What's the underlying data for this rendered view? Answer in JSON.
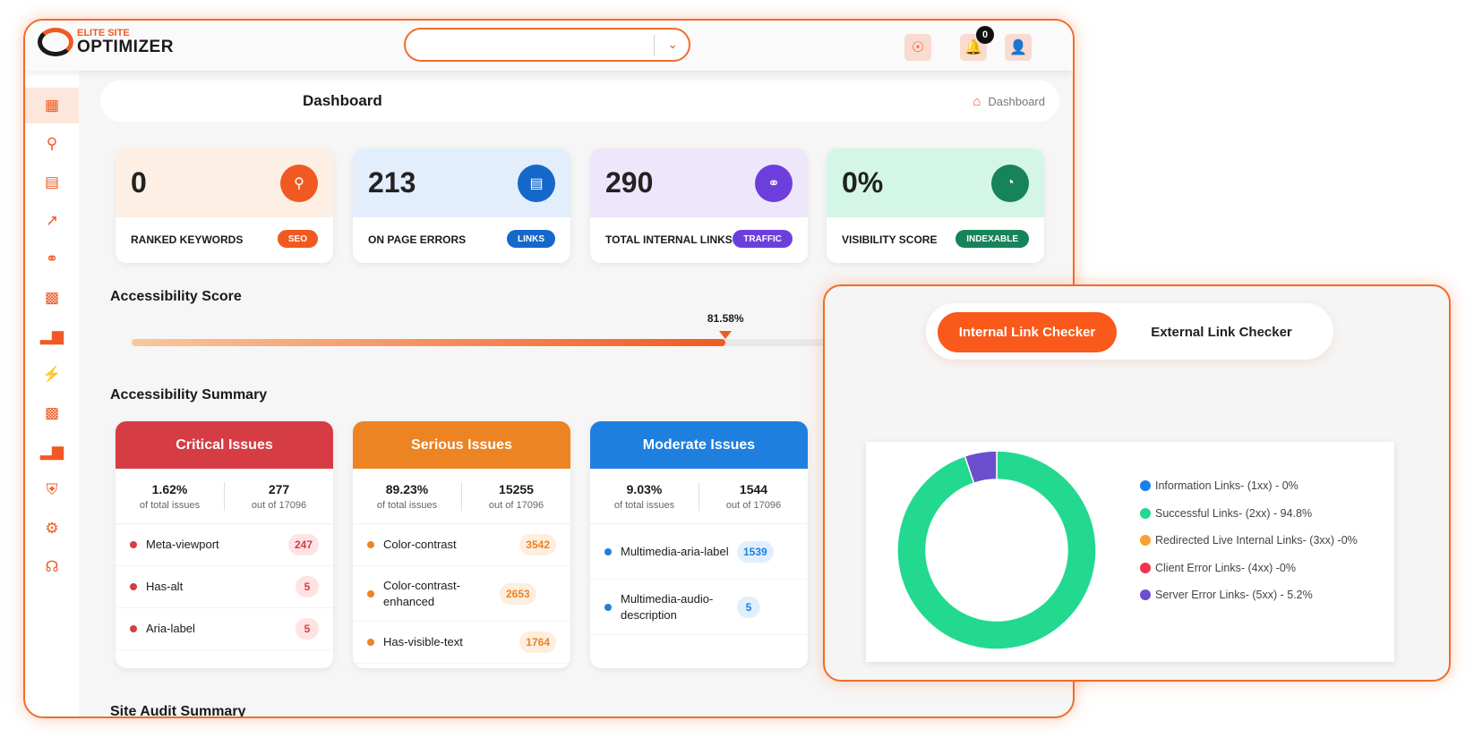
{
  "header": {
    "logo_top": "ELITE SITE",
    "logo_bottom": "OPTIMIZER",
    "dropdown_value": "",
    "notification_count": "0",
    "icons": [
      "support-icon",
      "bell-icon",
      "user-settings-icon"
    ]
  },
  "sidebar": {
    "items": [
      "dashboard",
      "search",
      "document",
      "trending",
      "link",
      "report",
      "bar-chart",
      "bolt",
      "analytics",
      "stats",
      "shield",
      "settings",
      "headset"
    ]
  },
  "breadcrumb": {
    "title": "Dashboard",
    "current": "Dashboard"
  },
  "stats": [
    {
      "value": "0",
      "label": "RANKED KEYWORDS",
      "tag": "SEO",
      "icon": "keyword-search-icon",
      "color": "#f05a22",
      "bg": "#fdefe3"
    },
    {
      "value": "213",
      "label": "ON PAGE ERRORS",
      "tag": "LINKS",
      "icon": "page-error-icon",
      "color": "#1568c9",
      "bg": "#e3eefc"
    },
    {
      "value": "290",
      "label": "TOTAL INTERNAL LINKS",
      "tag": "TRAFFIC",
      "icon": "internal-link-icon",
      "color": "#6c3fdc",
      "bg": "#eee6fb"
    },
    {
      "value": "0%",
      "label": "VISIBILITY SCORE",
      "tag": "INDEXABLE",
      "icon": "gauge-icon",
      "color": "#17835a",
      "bg": "#d3f6e6"
    }
  ],
  "accessibility": {
    "title": "Accessibility Score",
    "score_label": "81.58%",
    "score": 81.58
  },
  "summary": {
    "title": "Accessibility Summary",
    "cards": [
      {
        "title": "Critical Issues",
        "color": "#d63c44",
        "tint": "#fde3e4",
        "pct": "1.62%",
        "pct_label": "of total issues",
        "count": "277",
        "count_label": "out of 17096",
        "items": [
          {
            "name": "Meta-viewport",
            "count": "247"
          },
          {
            "name": "Has-alt",
            "count": "5"
          },
          {
            "name": "Aria-label",
            "count": "5"
          }
        ]
      },
      {
        "title": "Serious Issues",
        "color": "#ec8424",
        "tint": "#fdeedd",
        "pct": "89.23%",
        "pct_label": "of total issues",
        "count": "15255",
        "count_label": "out of 17096",
        "items": [
          {
            "name": "Color-contrast",
            "count": "3542"
          },
          {
            "name": "Color-contrast-enhanced",
            "count": "2653"
          },
          {
            "name": "Has-visible-text",
            "count": "1764"
          }
        ]
      },
      {
        "title": "Moderate Issues",
        "color": "#1f7fde",
        "tint": "#e1effc",
        "pct": "9.03%",
        "pct_label": "of total issues",
        "count": "1544",
        "count_label": "out of 17096",
        "items": [
          {
            "name": "Multimedia-aria-label",
            "count": "1539"
          },
          {
            "name": "Multimedia-audio-description",
            "count": "5"
          }
        ]
      }
    ]
  },
  "site_audit": {
    "title": "Site Audit Summary"
  },
  "link_checker": {
    "tabs": [
      "Internal Link Checker",
      "External Link Checker"
    ],
    "active_tab": 0
  },
  "chart_data": {
    "type": "pie",
    "donut": true,
    "labels": [
      "Information Links- (1xx) - 0%",
      "Successful Links- (2xx) - 94.8%",
      "Redirected Live Internal Links- (3xx) -0%",
      "Client Error Links- (4xx) -0%",
      "Server Error Links- (5xx) - 5.2%"
    ],
    "values": [
      0,
      94.8,
      0,
      0,
      5.2
    ],
    "colors": [
      "#1a7ff0",
      "#22d98f",
      "#f7a132",
      "#f0344f",
      "#6b4fcf"
    ],
    "legend": "right"
  }
}
